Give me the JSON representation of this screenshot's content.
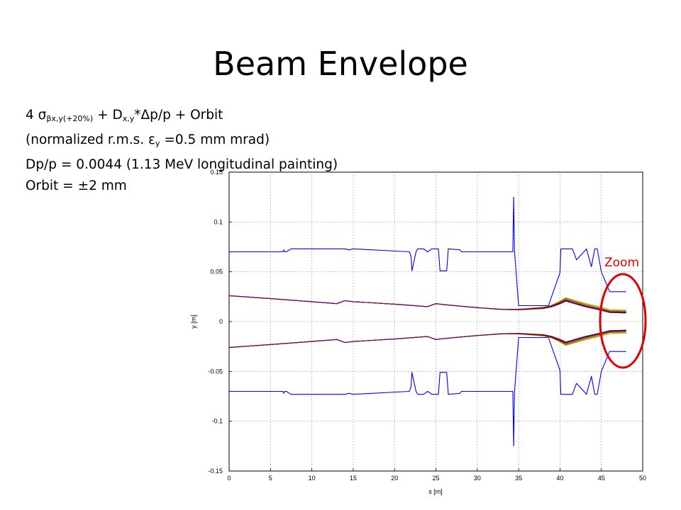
{
  "slide": {
    "title": "Beam Envelope",
    "line1": {
      "prefix": "4 ",
      "sigma": "σ",
      "sigma_sub": "βx,y(+20%)",
      "mid": " + D",
      "d_sub": "x,y",
      "suffix": "*Δp/p + Orbit"
    },
    "line2": {
      "prefix": "(normalized r.m.s. ",
      "eps": "ε",
      "eps_sub": "y",
      "suffix": " =0.5 mm mrad)"
    },
    "line3": "Dp/p = 0.0044 (1.13 MeV longitudinal painting)",
    "line4": "Orbit = ±2 mm",
    "zoom_label": "Zoom"
  },
  "colors": {
    "aperture": "#0000ff",
    "envelope_black": "#000000",
    "envelope_red": "#ff0000",
    "envelope_orange": "#ff9900",
    "envelope_purple": "#800080",
    "envelope_green": "#00aa00",
    "zoom_ring": "#e00000"
  },
  "chart_data": {
    "type": "line",
    "xlabel": "s [m]",
    "ylabel": "y [m]",
    "xlim": [
      0,
      50
    ],
    "ylim": [
      -0.15,
      0.15
    ],
    "xticks": [
      0,
      5,
      10,
      15,
      20,
      25,
      30,
      35,
      40,
      45,
      50
    ],
    "yticks": [
      -0.15,
      -0.1,
      -0.05,
      0,
      0.05,
      0.1,
      0.15
    ],
    "ytick_labels": [
      "-0.15",
      "-0.1",
      "-0.05",
      "0",
      "0.05",
      "0.1",
      "0.15"
    ],
    "grid": true,
    "series": [
      {
        "color": "#0000ff",
        "x": [
          0,
          6.5,
          6.6,
          6.7,
          6.8,
          6.9,
          7.5,
          14,
          14.5,
          15,
          21.8,
          22.0,
          22.1,
          22.6,
          22.8,
          23.5,
          24,
          24.5,
          25.3,
          25.5,
          26.3,
          26.5,
          27.9,
          28.1,
          34.3,
          34.4,
          34.5,
          35.0,
          35.2,
          38.3,
          38.6,
          40.0,
          40.1,
          41.5,
          42.0,
          43.0,
          43.2,
          43.8,
          44.2,
          44.5,
          45.0,
          46.0,
          48.0
        ],
        "y": [
          0.07,
          0.07,
          0.072,
          0.07,
          0.07,
          0.07,
          0.073,
          0.073,
          0.072,
          0.073,
          0.07,
          0.065,
          0.051,
          0.07,
          0.073,
          0.073,
          0.07,
          0.073,
          0.073,
          0.051,
          0.051,
          0.073,
          0.072,
          0.07,
          0.07,
          0.125,
          0.071,
          0.016,
          0.016,
          0.016,
          0.016,
          0.049,
          0.073,
          0.073,
          0.062,
          0.071,
          0.073,
          0.055,
          0.073,
          0.073,
          0.05,
          0.03,
          0.03
        ]
      },
      {
        "color": "#0000ff",
        "x": [
          0,
          6.5,
          6.6,
          6.7,
          6.8,
          6.9,
          7.5,
          14,
          14.5,
          15,
          21.8,
          22.0,
          22.1,
          22.6,
          22.8,
          23.5,
          24,
          24.5,
          25.3,
          25.5,
          26.3,
          26.5,
          27.9,
          28.1,
          34.3,
          34.4,
          34.5,
          35.0,
          35.2,
          38.3,
          38.6,
          40.0,
          40.1,
          41.5,
          42.0,
          43.0,
          43.2,
          43.8,
          44.2,
          44.5,
          45.0,
          46.0,
          48.0
        ],
        "y": [
          -0.07,
          -0.07,
          -0.072,
          -0.07,
          -0.07,
          -0.07,
          -0.073,
          -0.073,
          -0.072,
          -0.073,
          -0.07,
          -0.065,
          -0.051,
          -0.07,
          -0.073,
          -0.073,
          -0.07,
          -0.073,
          -0.073,
          -0.051,
          -0.051,
          -0.073,
          -0.072,
          -0.07,
          -0.07,
          -0.125,
          -0.071,
          -0.016,
          -0.016,
          -0.016,
          -0.016,
          -0.049,
          -0.073,
          -0.073,
          -0.062,
          -0.071,
          -0.073,
          -0.055,
          -0.073,
          -0.073,
          -0.05,
          -0.03,
          -0.03
        ]
      },
      {
        "color": "#ff9900",
        "x": [
          0,
          5,
          10,
          13,
          14,
          15,
          20,
          24,
          25,
          26,
          30,
          33,
          35,
          38,
          39,
          40,
          40.7,
          41.5,
          43,
          45,
          46,
          48
        ],
        "y": [
          0.026,
          0.023,
          0.02,
          0.018,
          0.021,
          0.02,
          0.0175,
          0.015,
          0.018,
          0.017,
          0.014,
          0.0125,
          0.0125,
          0.0145,
          0.0165,
          0.0205,
          0.024,
          0.022,
          0.0185,
          0.0145,
          0.012,
          0.0115
        ]
      },
      {
        "color": "#00aa00",
        "x": [
          0,
          5,
          10,
          13,
          14,
          15,
          20,
          24,
          25,
          26,
          30,
          33,
          35,
          38,
          39,
          40,
          40.7,
          41.5,
          43,
          45,
          46,
          48
        ],
        "y": [
          0.026,
          0.023,
          0.02,
          0.018,
          0.021,
          0.02,
          0.0175,
          0.015,
          0.018,
          0.017,
          0.014,
          0.0123,
          0.0123,
          0.0142,
          0.0162,
          0.0198,
          0.0232,
          0.0212,
          0.0175,
          0.0135,
          0.011,
          0.0105
        ]
      },
      {
        "color": "#ff0000",
        "x": [
          0,
          5,
          10,
          13,
          14,
          15,
          20,
          24,
          25,
          26,
          30,
          33,
          35,
          38,
          39,
          40,
          40.7,
          41.5,
          43,
          45,
          46,
          48
        ],
        "y": [
          0.026,
          0.023,
          0.02,
          0.018,
          0.021,
          0.02,
          0.0175,
          0.015,
          0.018,
          0.017,
          0.014,
          0.0121,
          0.0121,
          0.0138,
          0.0158,
          0.0192,
          0.0222,
          0.0202,
          0.0165,
          0.0125,
          0.0102,
          0.0097
        ]
      },
      {
        "color": "#000000",
        "x": [
          0,
          5,
          10,
          13,
          14,
          15,
          20,
          24,
          25,
          26,
          30,
          33,
          35,
          38,
          39,
          40,
          40.7,
          41.5,
          43,
          45,
          46,
          48
        ],
        "y": [
          0.026,
          0.023,
          0.02,
          0.018,
          0.021,
          0.02,
          0.0175,
          0.015,
          0.018,
          0.017,
          0.014,
          0.0122,
          0.0119,
          0.0134,
          0.0152,
          0.0184,
          0.0212,
          0.0192,
          0.0155,
          0.0117,
          0.0095,
          0.009
        ]
      },
      {
        "color": "#800080",
        "x": [
          0,
          5,
          10,
          13,
          14,
          15,
          20,
          24,
          25,
          26,
          30,
          33,
          35,
          38,
          39,
          40,
          40.7,
          41.5,
          43,
          45,
          46,
          48
        ],
        "y": [
          0.026,
          0.023,
          0.02,
          0.018,
          0.021,
          0.02,
          0.0175,
          0.015,
          0.018,
          0.017,
          0.014,
          0.0121,
          0.0118,
          0.0131,
          0.0148,
          0.0178,
          0.0205,
          0.0186,
          0.0149,
          0.0112,
          0.0091,
          0.0086
        ]
      },
      {
        "color": "#ff9900",
        "x": [
          0,
          5,
          10,
          13,
          14,
          15,
          20,
          24,
          25,
          26,
          30,
          33,
          35,
          38,
          39,
          40,
          40.7,
          41.5,
          43,
          45,
          46,
          48
        ],
        "y": [
          -0.026,
          -0.023,
          -0.02,
          -0.018,
          -0.021,
          -0.02,
          -0.0175,
          -0.015,
          -0.018,
          -0.017,
          -0.014,
          -0.0125,
          -0.0125,
          -0.0145,
          -0.0165,
          -0.0205,
          -0.024,
          -0.022,
          -0.0185,
          -0.0145,
          -0.012,
          -0.0115
        ]
      },
      {
        "color": "#00aa00",
        "x": [
          0,
          5,
          10,
          13,
          14,
          15,
          20,
          24,
          25,
          26,
          30,
          33,
          35,
          38,
          39,
          40,
          40.7,
          41.5,
          43,
          45,
          46,
          48
        ],
        "y": [
          -0.026,
          -0.023,
          -0.02,
          -0.018,
          -0.021,
          -0.02,
          -0.0175,
          -0.015,
          -0.018,
          -0.017,
          -0.014,
          -0.0123,
          -0.0123,
          -0.0142,
          -0.0162,
          -0.0198,
          -0.0232,
          -0.0212,
          -0.0175,
          -0.0135,
          -0.011,
          -0.0105
        ]
      },
      {
        "color": "#ff0000",
        "x": [
          0,
          5,
          10,
          13,
          14,
          15,
          20,
          24,
          25,
          26,
          30,
          33,
          35,
          38,
          39,
          40,
          40.7,
          41.5,
          43,
          45,
          46,
          48
        ],
        "y": [
          -0.026,
          -0.023,
          -0.02,
          -0.018,
          -0.021,
          -0.02,
          -0.0175,
          -0.015,
          -0.018,
          -0.017,
          -0.014,
          -0.0121,
          -0.0121,
          -0.0138,
          -0.0158,
          -0.0192,
          -0.0222,
          -0.0202,
          -0.0165,
          -0.0125,
          -0.0102,
          -0.0097
        ]
      },
      {
        "color": "#000000",
        "x": [
          0,
          5,
          10,
          13,
          14,
          15,
          20,
          24,
          25,
          26,
          30,
          33,
          35,
          38,
          39,
          40,
          40.7,
          41.5,
          43,
          45,
          46,
          48
        ],
        "y": [
          -0.026,
          -0.023,
          -0.02,
          -0.018,
          -0.021,
          -0.02,
          -0.0175,
          -0.015,
          -0.018,
          -0.017,
          -0.014,
          -0.0122,
          -0.0119,
          -0.0134,
          -0.0152,
          -0.0184,
          -0.0212,
          -0.0192,
          -0.0155,
          -0.0117,
          -0.0095,
          -0.009
        ]
      },
      {
        "color": "#800080",
        "x": [
          0,
          5,
          10,
          13,
          14,
          15,
          20,
          24,
          25,
          26,
          30,
          33,
          35,
          38,
          39,
          40,
          40.7,
          41.5,
          43,
          45,
          46,
          48
        ],
        "y": [
          -0.026,
          -0.023,
          -0.02,
          -0.018,
          -0.021,
          -0.02,
          -0.0175,
          -0.015,
          -0.018,
          -0.017,
          -0.014,
          -0.0121,
          -0.0118,
          -0.0131,
          -0.0148,
          -0.0178,
          -0.0205,
          -0.0186,
          -0.0149,
          -0.0112,
          -0.0091,
          -0.0086
        ]
      }
    ],
    "annotation": {
      "text": "Zoom",
      "shape": "ellipse",
      "center_x": 47.0,
      "center_y": 0.0,
      "color": "#e00000"
    }
  }
}
